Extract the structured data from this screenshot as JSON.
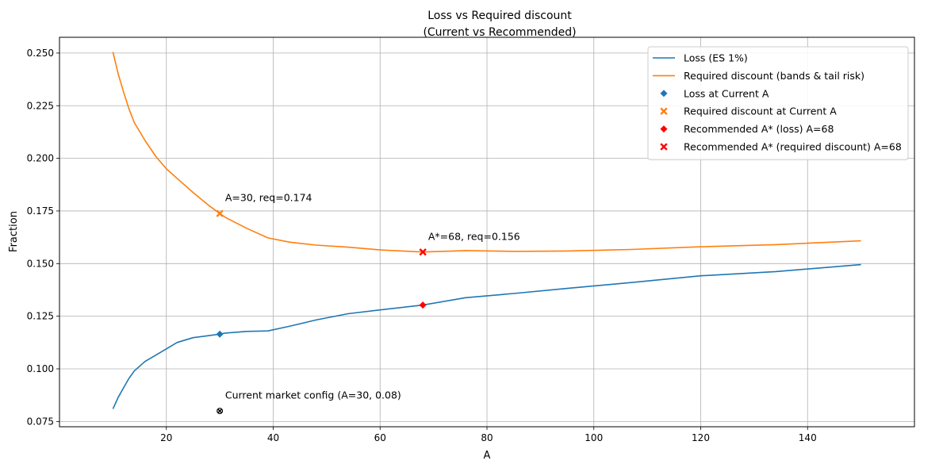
{
  "chart_data": {
    "type": "line",
    "title_line1": "Loss vs Required discount",
    "title_line2": "(Current vs Recommended)",
    "xlabel": "A",
    "ylabel": "Fraction",
    "xlim": [
      0,
      160
    ],
    "ylim": [
      0.0725,
      0.2575
    ],
    "xticks": [
      "20",
      "40",
      "60",
      "80",
      "100",
      "120",
      "140"
    ],
    "yticks": [
      "0.075",
      "0.100",
      "0.125",
      "0.150",
      "0.175",
      "0.200",
      "0.225",
      "0.250"
    ],
    "grid": true,
    "legend_position": "top-right",
    "colors": {
      "loss": "#1f77b4",
      "required": "#ff7f0e",
      "recommended": "#ff0000",
      "config": "#000000"
    },
    "series": [
      {
        "name": "Loss (ES 1%)",
        "key": "loss",
        "x": [
          10,
          11,
          12,
          13,
          14,
          16,
          18,
          20,
          22,
          25,
          28,
          30,
          31,
          35,
          39,
          43,
          48,
          54,
          60,
          68,
          76,
          85,
          95,
          107,
          120,
          134,
          150
        ],
        "y": [
          0.081,
          0.0865,
          0.091,
          0.0955,
          0.099,
          0.1035,
          0.1065,
          0.1095,
          0.1125,
          0.1148,
          0.1158,
          0.1165,
          0.117,
          0.1178,
          0.118,
          0.1202,
          0.1232,
          0.1262,
          0.128,
          0.1303,
          0.1338,
          0.1358,
          0.1382,
          0.141,
          0.1442,
          0.1462,
          0.1495
        ]
      },
      {
        "name": "Required discount (bands & tail risk)",
        "key": "required",
        "x": [
          10,
          11,
          12,
          13,
          14,
          16,
          18,
          20,
          22,
          25,
          28,
          30,
          31,
          35,
          39,
          43,
          48,
          54,
          60,
          68,
          76,
          85,
          95,
          107,
          120,
          134,
          150
        ],
        "y": [
          0.2505,
          0.24,
          0.2315,
          0.2235,
          0.217,
          0.2085,
          0.201,
          0.195,
          0.1905,
          0.1838,
          0.1775,
          0.1738,
          0.172,
          0.1668,
          0.1622,
          0.1602,
          0.1588,
          0.1578,
          0.1565,
          0.1555,
          0.1562,
          0.1558,
          0.156,
          0.1567,
          0.158,
          0.159,
          0.1608
        ]
      }
    ],
    "markers": [
      {
        "name": "Loss at Current A",
        "x": 30,
        "y": 0.1165,
        "shape": "diamond",
        "colorKey": "loss"
      },
      {
        "name": "Required discount at Current A",
        "x": 30,
        "y": 0.1738,
        "shape": "x",
        "colorKey": "required"
      },
      {
        "name": "Recommended A* (loss) A=68",
        "x": 68,
        "y": 0.1303,
        "shape": "diamond",
        "colorKey": "recommended"
      },
      {
        "name": "Recommended A* (required discount) A=68",
        "x": 68,
        "y": 0.1555,
        "shape": "x",
        "colorKey": "recommended"
      },
      {
        "name": "",
        "x": 30,
        "y": 0.08,
        "shape": "xo",
        "colorKey": "config",
        "legend": false
      }
    ],
    "annotations": [
      {
        "text": "A=30, req=0.174",
        "x": 31,
        "y": 0.1797
      },
      {
        "text": "A*=68, req=0.156",
        "x": 69,
        "y": 0.1612
      },
      {
        "text": "Current market config (A=30, 0.08)",
        "x": 31,
        "y": 0.0858
      }
    ]
  }
}
